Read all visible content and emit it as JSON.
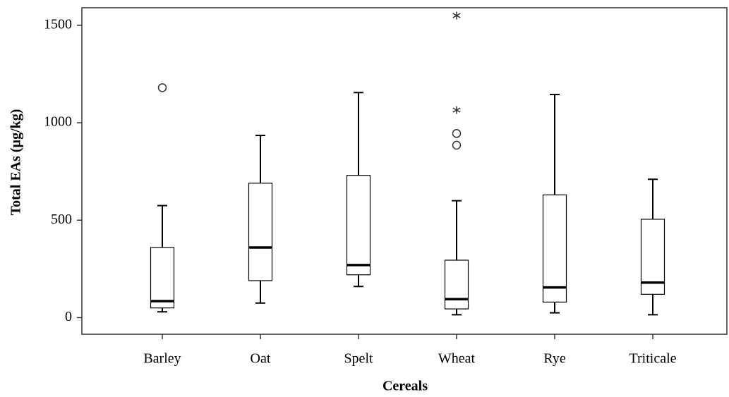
{
  "chart_data": {
    "type": "box",
    "x_label": "Cereals",
    "y_label": "Total EAs (µg/kg)",
    "categories": [
      "Barley",
      "Oat",
      "Spelt",
      "Wheat",
      "Rye",
      "Triticale"
    ],
    "min": [
      30,
      75,
      160,
      15,
      25,
      15
    ],
    "q1": [
      50,
      190,
      220,
      45,
      80,
      120
    ],
    "median": [
      85,
      360,
      270,
      95,
      155,
      180
    ],
    "q3": [
      360,
      690,
      730,
      295,
      630,
      505
    ],
    "max": [
      575,
      935,
      1155,
      600,
      1145,
      710
    ],
    "outliers": [
      [
        1180
      ],
      [],
      [],
      [
        945,
        885
      ],
      [],
      []
    ],
    "extremes": [
      [],
      [],
      [],
      [
        1065,
        1550
      ],
      [],
      []
    ],
    "color": "#000000",
    "ylim": [
      -85,
      1590
    ],
    "yticks": [
      0,
      500,
      1000,
      1500
    ]
  }
}
